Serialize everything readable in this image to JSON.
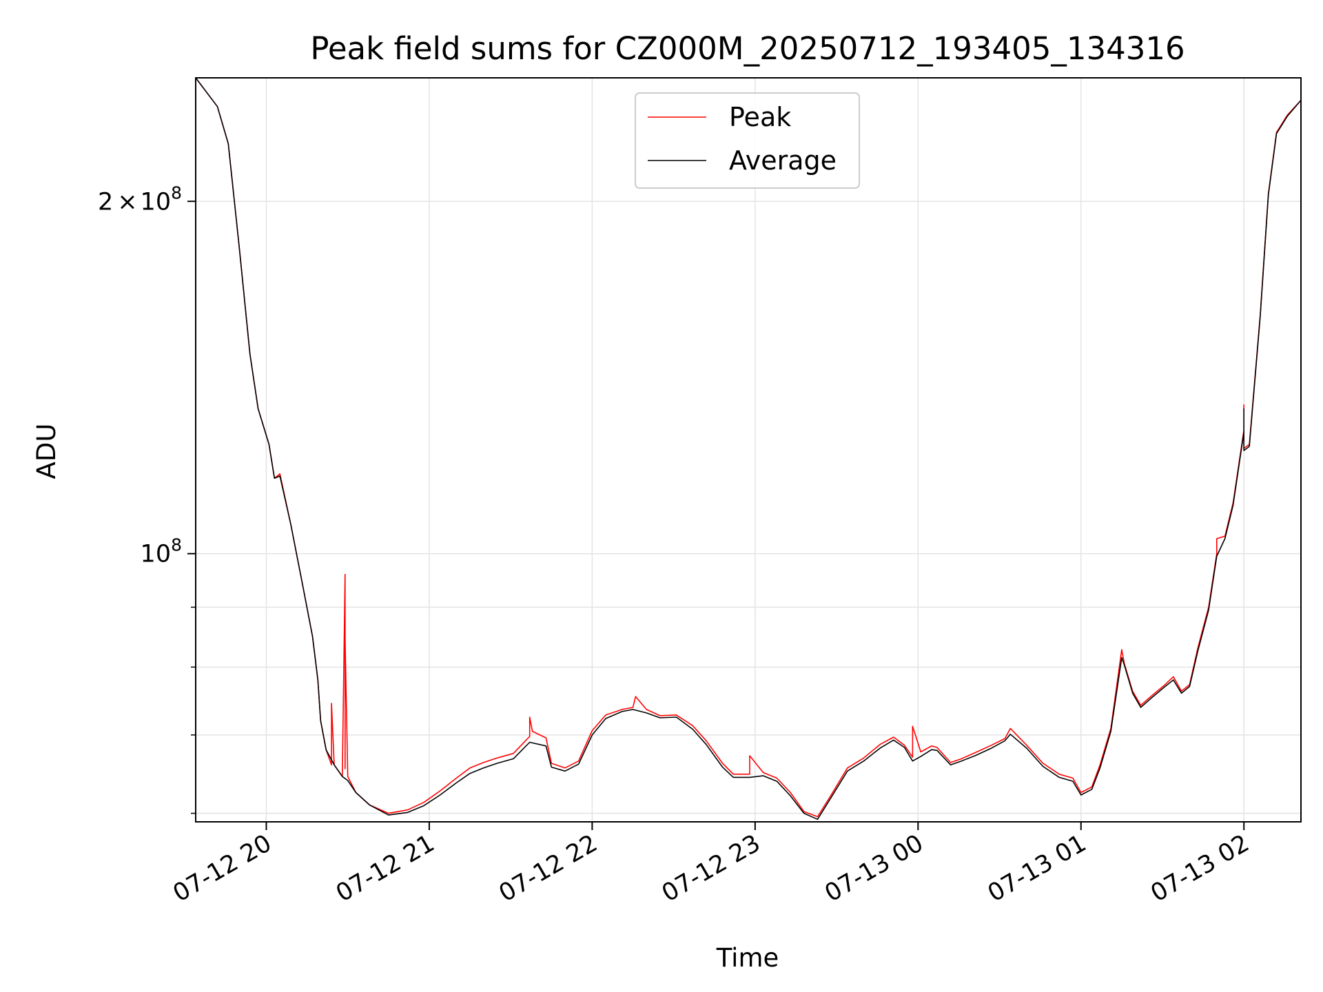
{
  "chart_data": {
    "type": "line",
    "title": "Peak field sums for CZ000M_20250712_193405_134316",
    "xlabel": "Time",
    "ylabel": "ADU",
    "y_scale": "log",
    "ylim": [
      59000000,
      255000000
    ],
    "xlim": [
      "2025-07-12 19:34",
      "2025-07-13 02:21"
    ],
    "grid": true,
    "legend_position": "upper center",
    "x_ticks": [
      {
        "t": "2025-07-12 20:00",
        "label": "07-12 20"
      },
      {
        "t": "2025-07-12 21:00",
        "label": "07-12 21"
      },
      {
        "t": "2025-07-12 22:00",
        "label": "07-12 22"
      },
      {
        "t": "2025-07-12 23:00",
        "label": "07-12 23"
      },
      {
        "t": "2025-07-13 00:00",
        "label": "07-13 00"
      },
      {
        "t": "2025-07-13 01:00",
        "label": "07-13 01"
      },
      {
        "t": "2025-07-13 02:00",
        "label": "07-13 02"
      }
    ],
    "y_major_ticks": [
      {
        "value": 100000000,
        "base": "10",
        "exp": "8",
        "coef": ""
      },
      {
        "value": 200000000,
        "base": "10",
        "exp": "8",
        "coef": "2×"
      }
    ],
    "y_minor_ticks": [
      60000000,
      70000000,
      80000000,
      90000000
    ],
    "series": [
      {
        "name": "Peak",
        "color": "#ff0000",
        "points": [
          [
            "2025-07-12 19:34",
            255000000
          ],
          [
            "2025-07-12 19:42",
            241000000
          ],
          [
            "2025-07-12 19:46",
            224000000
          ],
          [
            "2025-07-12 19:50",
            183000000
          ],
          [
            "2025-07-12 19:54",
            148000000
          ],
          [
            "2025-07-12 19:57",
            133000000
          ],
          [
            "2025-07-12 20:01",
            124000000
          ],
          [
            "2025-07-12 20:03",
            116000000
          ],
          [
            "2025-07-12 20:05",
            117000000
          ],
          [
            "2025-07-12 20:09",
            106000000
          ],
          [
            "2025-07-12 20:13",
            95000000
          ],
          [
            "2025-07-12 20:17",
            85000000
          ],
          [
            "2025-07-12 20:19",
            78000000
          ],
          [
            "2025-07-12 20:20",
            72000000
          ],
          [
            "2025-07-12 20:22",
            68000000
          ],
          [
            "2025-07-12 20:24",
            66000000
          ],
          [
            "2025-07-12 20:24",
            74500000
          ],
          [
            "2025-07-12 20:25",
            66000000
          ],
          [
            "2025-07-12 20:27",
            65000000
          ],
          [
            "2025-07-12 20:28",
            64500000
          ],
          [
            "2025-07-12 20:29",
            96000000
          ],
          [
            "2025-07-12 20:29",
            65500000
          ],
          [
            "2025-07-12 20:29",
            84500000
          ],
          [
            "2025-07-12 20:30",
            64500000
          ],
          [
            "2025-07-12 20:33",
            62500000
          ],
          [
            "2025-07-12 20:38",
            61000000
          ],
          [
            "2025-07-12 20:45",
            60000000
          ],
          [
            "2025-07-12 20:52",
            60400000
          ],
          [
            "2025-07-12 20:58",
            61300000
          ],
          [
            "2025-07-12 21:04",
            62700000
          ],
          [
            "2025-07-12 21:10",
            64300000
          ],
          [
            "2025-07-12 21:15",
            65600000
          ],
          [
            "2025-07-12 21:20",
            66300000
          ],
          [
            "2025-07-12 21:25",
            66900000
          ],
          [
            "2025-07-12 21:31",
            67500000
          ],
          [
            "2025-07-12 21:37",
            69800000
          ],
          [
            "2025-07-12 21:37",
            72500000
          ],
          [
            "2025-07-12 21:38",
            70500000
          ],
          [
            "2025-07-12 21:43",
            69600000
          ],
          [
            "2025-07-12 21:45",
            66200000
          ],
          [
            "2025-07-12 21:50",
            65600000
          ],
          [
            "2025-07-12 21:55",
            66500000
          ],
          [
            "2025-07-12 22:00",
            70600000
          ],
          [
            "2025-07-12 22:05",
            72800000
          ],
          [
            "2025-07-12 22:11",
            73600000
          ],
          [
            "2025-07-12 22:15",
            73900000
          ],
          [
            "2025-07-12 22:16",
            75500000
          ],
          [
            "2025-07-12 22:20",
            73600000
          ],
          [
            "2025-07-12 22:25",
            72700000
          ],
          [
            "2025-07-12 22:31",
            72800000
          ],
          [
            "2025-07-12 22:37",
            71300000
          ],
          [
            "2025-07-12 22:42",
            69200000
          ],
          [
            "2025-07-12 22:48",
            66200000
          ],
          [
            "2025-07-12 22:52",
            64800000
          ],
          [
            "2025-07-12 22:58",
            64800000
          ],
          [
            "2025-07-12 22:58",
            67200000
          ],
          [
            "2025-07-12 23:03",
            65000000
          ],
          [
            "2025-07-12 23:08",
            64300000
          ],
          [
            "2025-07-12 23:13",
            62500000
          ],
          [
            "2025-07-12 23:18",
            60200000
          ],
          [
            "2025-07-12 23:23",
            59600000
          ],
          [
            "2025-07-12 23:28",
            62200000
          ],
          [
            "2025-07-12 23:34",
            65600000
          ],
          [
            "2025-07-12 23:40",
            66900000
          ],
          [
            "2025-07-12 23:46",
            68700000
          ],
          [
            "2025-07-12 23:51",
            69700000
          ],
          [
            "2025-07-12 23:55",
            68600000
          ],
          [
            "2025-07-12 23:58",
            67000000
          ],
          [
            "2025-07-12 23:58",
            71200000
          ],
          [
            "2025-07-13 00:01",
            67700000
          ],
          [
            "2025-07-13 00:05",
            68500000
          ],
          [
            "2025-07-13 00:07",
            68300000
          ],
          [
            "2025-07-13 00:12",
            66300000
          ],
          [
            "2025-07-13 00:16",
            66800000
          ],
          [
            "2025-07-13 00:21",
            67600000
          ],
          [
            "2025-07-13 00:27",
            68600000
          ],
          [
            "2025-07-13 00:32",
            69500000
          ],
          [
            "2025-07-13 00:34",
            70900000
          ],
          [
            "2025-07-13 00:40",
            68600000
          ],
          [
            "2025-07-13 00:46",
            66200000
          ],
          [
            "2025-07-13 00:52",
            64800000
          ],
          [
            "2025-07-13 00:57",
            64300000
          ],
          [
            "2025-07-13 01:00",
            62500000
          ],
          [
            "2025-07-13 01:04",
            63200000
          ],
          [
            "2025-07-13 01:07",
            66000000
          ],
          [
            "2025-07-13 01:11",
            70900000
          ],
          [
            "2025-07-13 01:15",
            82800000
          ],
          [
            "2025-07-13 01:16",
            80500000
          ],
          [
            "2025-07-13 01:19",
            76300000
          ],
          [
            "2025-07-13 01:22",
            74200000
          ],
          [
            "2025-07-13 01:26",
            75600000
          ],
          [
            "2025-07-13 01:31",
            77300000
          ],
          [
            "2025-07-13 01:34",
            78500000
          ],
          [
            "2025-07-13 01:37",
            76300000
          ],
          [
            "2025-07-13 01:40",
            77300000
          ],
          [
            "2025-07-13 01:43",
            83000000
          ],
          [
            "2025-07-13 01:47",
            90000000
          ],
          [
            "2025-07-13 01:50",
            100000000
          ],
          [
            "2025-07-13 01:50",
            103000000
          ],
          [
            "2025-07-13 01:53",
            103500000
          ],
          [
            "2025-07-13 01:56",
            110500000
          ],
          [
            "2025-07-13 02:00",
            127500000
          ],
          [
            "2025-07-13 02:00",
            134000000
          ],
          [
            "2025-07-13 02:00",
            123000000
          ],
          [
            "2025-07-13 02:02",
            124000000
          ],
          [
            "2025-07-13 02:06",
            160000000
          ],
          [
            "2025-07-13 02:09",
            203000000
          ],
          [
            "2025-07-13 02:12",
            229000000
          ],
          [
            "2025-07-13 02:16",
            237000000
          ],
          [
            "2025-07-13 02:21",
            244000000
          ]
        ]
      },
      {
        "name": "Average",
        "color": "#000000",
        "points": [
          [
            "2025-07-12 19:34",
            255000000
          ],
          [
            "2025-07-12 19:42",
            241000000
          ],
          [
            "2025-07-12 19:46",
            224000000
          ],
          [
            "2025-07-12 19:50",
            183000000
          ],
          [
            "2025-07-12 19:54",
            148000000
          ],
          [
            "2025-07-12 19:57",
            133000000
          ],
          [
            "2025-07-12 20:01",
            124000000
          ],
          [
            "2025-07-12 20:03",
            116000000
          ],
          [
            "2025-07-12 20:05",
            116500000
          ],
          [
            "2025-07-12 20:09",
            106000000
          ],
          [
            "2025-07-12 20:13",
            95000000
          ],
          [
            "2025-07-12 20:17",
            85000000
          ],
          [
            "2025-07-12 20:19",
            78000000
          ],
          [
            "2025-07-12 20:20",
            72000000
          ],
          [
            "2025-07-12 20:22",
            68000000
          ],
          [
            "2025-07-12 20:25",
            66000000
          ],
          [
            "2025-07-12 20:28",
            64500000
          ],
          [
            "2025-07-12 20:30",
            64000000
          ],
          [
            "2025-07-12 20:33",
            62500000
          ],
          [
            "2025-07-12 20:38",
            61000000
          ],
          [
            "2025-07-12 20:45",
            59800000
          ],
          [
            "2025-07-12 20:52",
            60100000
          ],
          [
            "2025-07-12 20:58",
            60900000
          ],
          [
            "2025-07-12 21:04",
            62200000
          ],
          [
            "2025-07-12 21:10",
            63700000
          ],
          [
            "2025-07-12 21:15",
            64900000
          ],
          [
            "2025-07-12 21:20",
            65600000
          ],
          [
            "2025-07-12 21:25",
            66200000
          ],
          [
            "2025-07-12 21:31",
            66800000
          ],
          [
            "2025-07-12 21:37",
            69000000
          ],
          [
            "2025-07-12 21:43",
            68500000
          ],
          [
            "2025-07-12 21:45",
            65700000
          ],
          [
            "2025-07-12 21:50",
            65200000
          ],
          [
            "2025-07-12 21:55",
            66100000
          ],
          [
            "2025-07-12 22:00",
            70000000
          ],
          [
            "2025-07-12 22:05",
            72300000
          ],
          [
            "2025-07-12 22:11",
            73300000
          ],
          [
            "2025-07-12 22:15",
            73600000
          ],
          [
            "2025-07-12 22:20",
            73100000
          ],
          [
            "2025-07-12 22:25",
            72400000
          ],
          [
            "2025-07-12 22:31",
            72500000
          ],
          [
            "2025-07-12 22:37",
            70800000
          ],
          [
            "2025-07-12 22:42",
            68700000
          ],
          [
            "2025-07-12 22:48",
            65700000
          ],
          [
            "2025-07-12 22:52",
            64400000
          ],
          [
            "2025-07-12 22:58",
            64400000
          ],
          [
            "2025-07-12 23:03",
            64600000
          ],
          [
            "2025-07-12 23:08",
            63900000
          ],
          [
            "2025-07-12 23:13",
            62100000
          ],
          [
            "2025-07-12 23:18",
            60000000
          ],
          [
            "2025-07-12 23:23",
            59300000
          ],
          [
            "2025-07-12 23:28",
            61900000
          ],
          [
            "2025-07-12 23:34",
            65200000
          ],
          [
            "2025-07-12 23:40",
            66500000
          ],
          [
            "2025-07-12 23:46",
            68200000
          ],
          [
            "2025-07-12 23:51",
            69300000
          ],
          [
            "2025-07-12 23:55",
            68300000
          ],
          [
            "2025-07-12 23:58",
            66500000
          ],
          [
            "2025-07-13 00:01",
            67100000
          ],
          [
            "2025-07-13 00:05",
            68000000
          ],
          [
            "2025-07-13 00:07",
            67900000
          ],
          [
            "2025-07-13 00:12",
            66000000
          ],
          [
            "2025-07-13 00:16",
            66500000
          ],
          [
            "2025-07-13 00:21",
            67200000
          ],
          [
            "2025-07-13 00:27",
            68200000
          ],
          [
            "2025-07-13 00:32",
            69200000
          ],
          [
            "2025-07-13 00:34",
            70100000
          ],
          [
            "2025-07-13 00:40",
            68200000
          ],
          [
            "2025-07-13 00:46",
            65800000
          ],
          [
            "2025-07-13 00:52",
            64400000
          ],
          [
            "2025-07-13 00:57",
            63900000
          ],
          [
            "2025-07-13 01:00",
            62200000
          ],
          [
            "2025-07-13 01:04",
            62900000
          ],
          [
            "2025-07-13 01:07",
            65600000
          ],
          [
            "2025-07-13 01:11",
            70500000
          ],
          [
            "2025-07-13 01:15",
            81500000
          ],
          [
            "2025-07-13 01:16",
            80300000
          ],
          [
            "2025-07-13 01:19",
            76000000
          ],
          [
            "2025-07-13 01:22",
            73900000
          ],
          [
            "2025-07-13 01:26",
            75300000
          ],
          [
            "2025-07-13 01:31",
            77000000
          ],
          [
            "2025-07-13 01:34",
            78000000
          ],
          [
            "2025-07-13 01:37",
            76000000
          ],
          [
            "2025-07-13 01:40",
            77000000
          ],
          [
            "2025-07-13 01:43",
            82500000
          ],
          [
            "2025-07-13 01:47",
            89500000
          ],
          [
            "2025-07-13 01:50",
            99500000
          ],
          [
            "2025-07-13 01:53",
            103000000
          ],
          [
            "2025-07-13 01:56",
            110000000
          ],
          [
            "2025-07-13 02:00",
            127000000
          ],
          [
            "2025-07-13 02:00",
            133000000
          ],
          [
            "2025-07-13 02:00",
            122500000
          ],
          [
            "2025-07-13 02:02",
            123500000
          ],
          [
            "2025-07-13 02:06",
            159500000
          ],
          [
            "2025-07-13 02:09",
            202500000
          ],
          [
            "2025-07-13 02:12",
            228500000
          ],
          [
            "2025-07-13 02:16",
            236500000
          ],
          [
            "2025-07-13 02:21",
            244000000
          ]
        ]
      }
    ]
  }
}
